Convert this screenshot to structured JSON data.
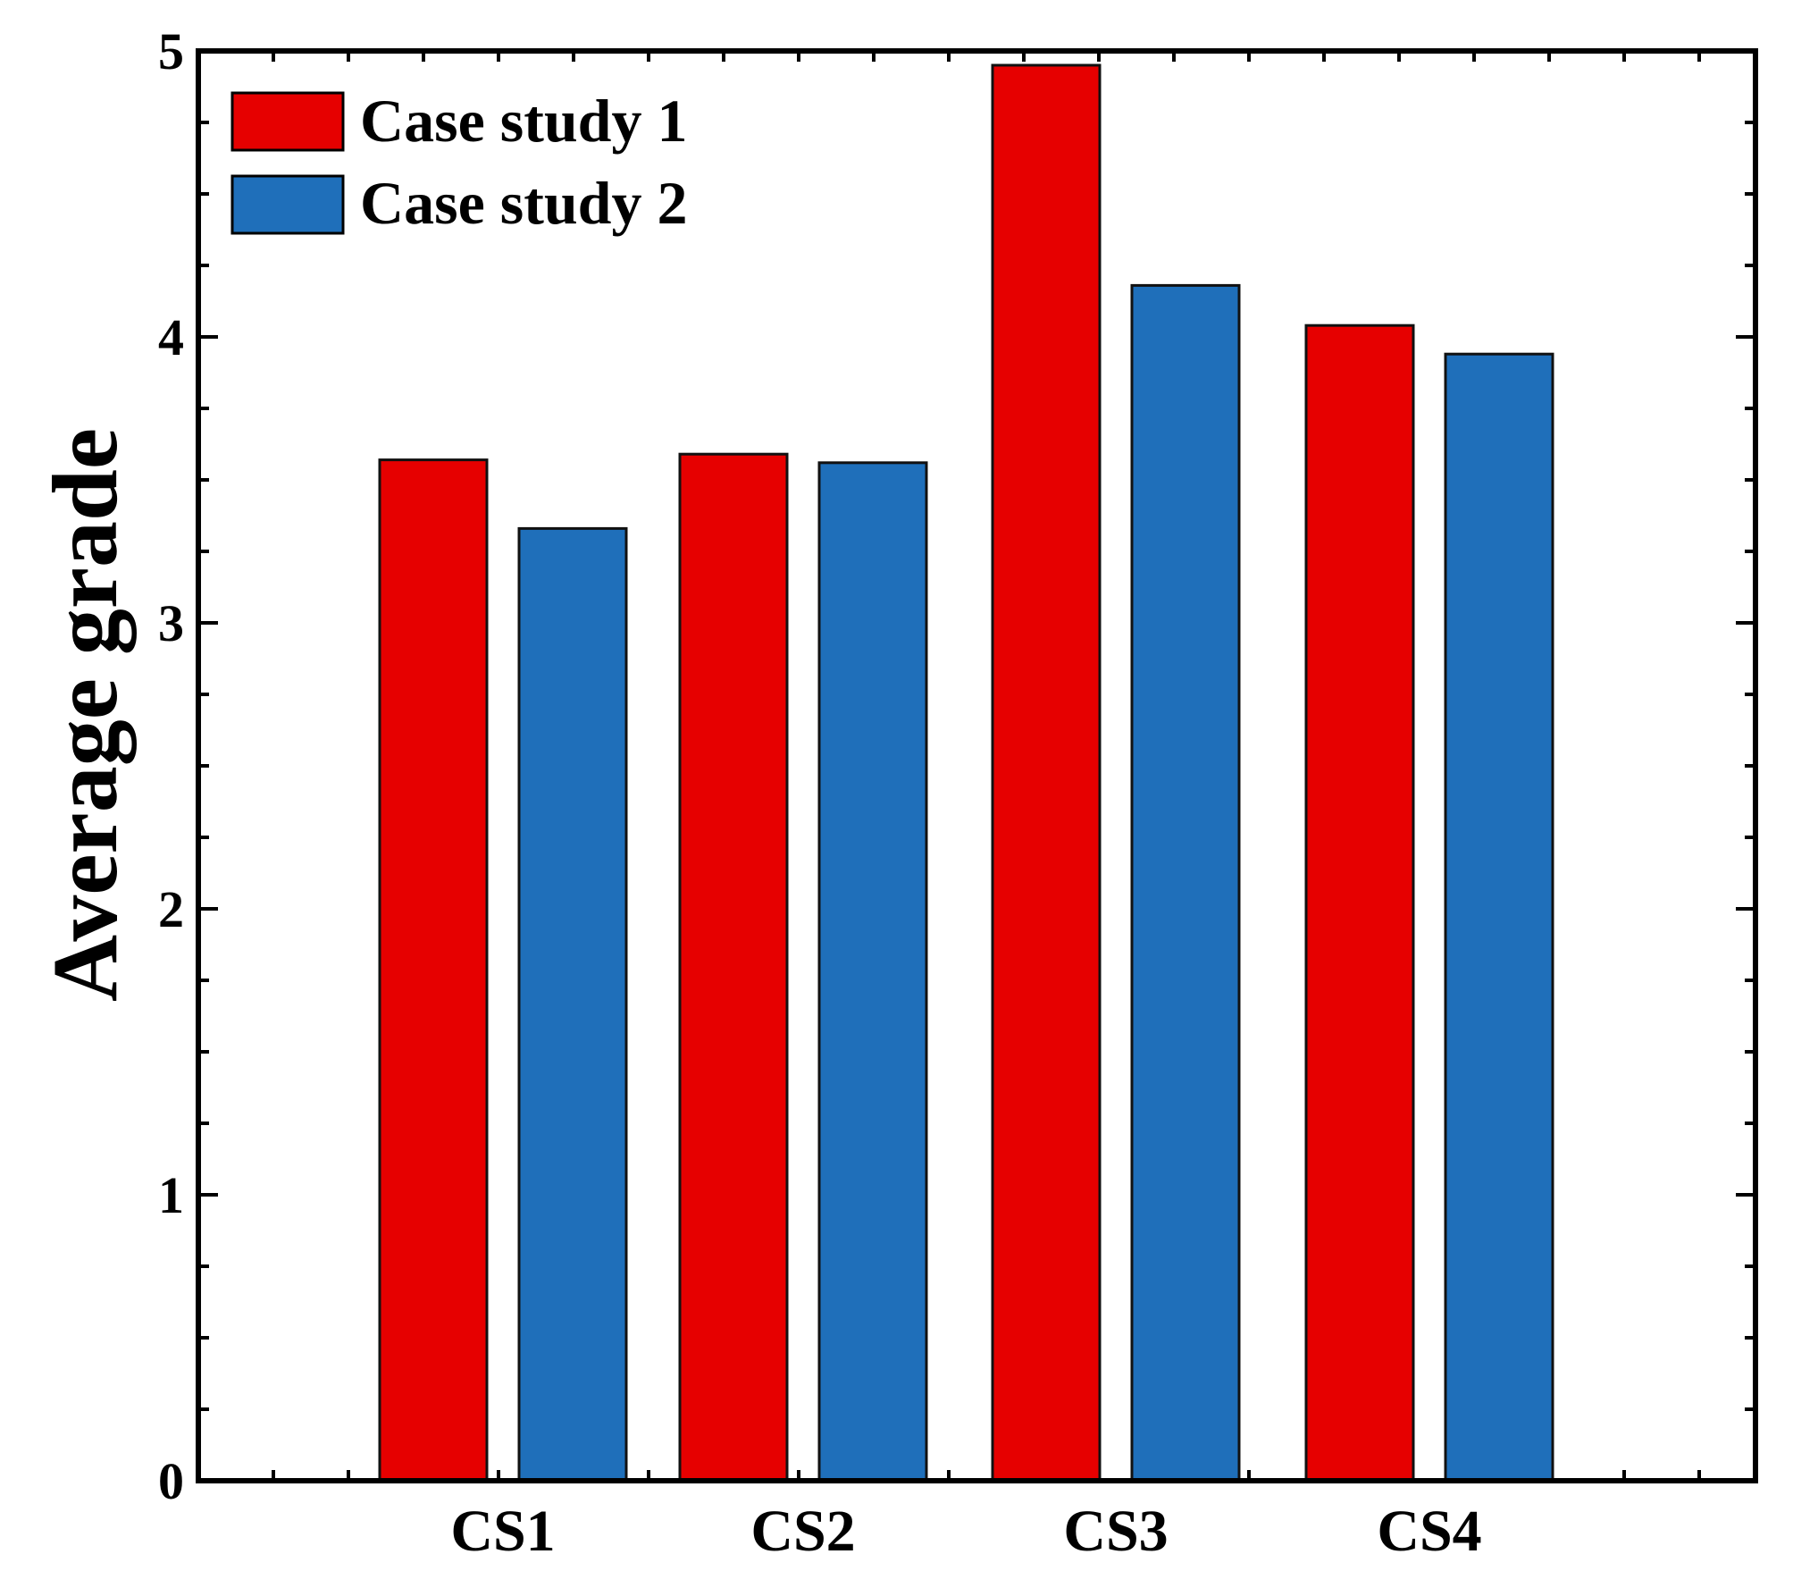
{
  "chart_data": {
    "type": "bar",
    "title": "",
    "xlabel": "",
    "ylabel": "Average grade",
    "ylim": [
      0,
      5
    ],
    "yticks": [
      "0",
      "1",
      "2",
      "3",
      "4",
      "5"
    ],
    "categories": [
      "CS1",
      "CS2",
      "CS3",
      "CS4"
    ],
    "series": [
      {
        "name": "Case study 1",
        "color": "#e60000",
        "values": [
          3.57,
          3.59,
          4.95,
          4.04
        ]
      },
      {
        "name": "Case study 2",
        "color": "#1f6fba",
        "values": [
          3.33,
          3.56,
          4.18,
          3.94
        ]
      }
    ],
    "legend_position": "top-left",
    "grid": false
  }
}
